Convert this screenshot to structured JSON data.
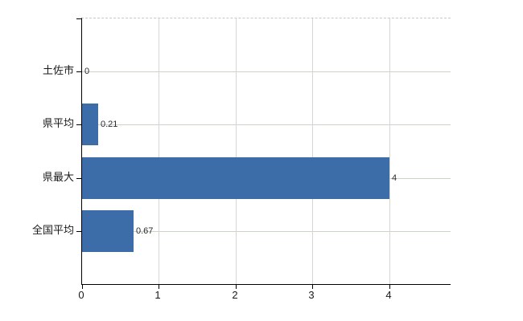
{
  "chart_data": {
    "type": "bar",
    "orientation": "horizontal",
    "categories": [
      "土佐市",
      "県平均",
      "県最大",
      "全国平均"
    ],
    "values": [
      0,
      0.21,
      4,
      0.67
    ],
    "value_labels": [
      "0",
      "0.21",
      "4",
      "0.67"
    ],
    "x_ticks": [
      0,
      1,
      2,
      3,
      4
    ],
    "x_tick_labels": [
      "0",
      "1",
      "2",
      "3",
      "4"
    ],
    "xlim": [
      0,
      4.8
    ],
    "grid": true,
    "legend": false,
    "bar_color": "#3d6da8",
    "grid_color": "#ccd4c8",
    "axis_color": "#000000"
  }
}
